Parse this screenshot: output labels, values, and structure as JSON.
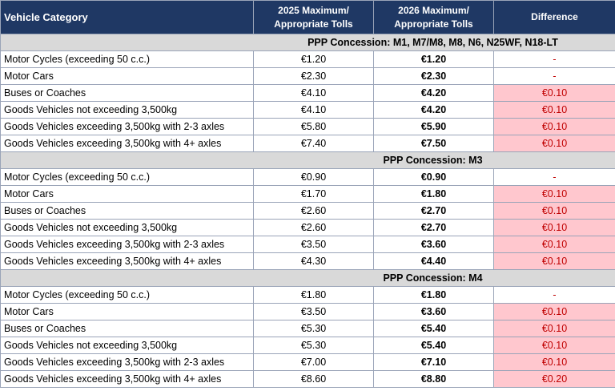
{
  "header": {
    "columns": [
      "Vehicle Category",
      "2025 Maximum/\nAppropriate Tolls",
      "2026 Maximum/\nAppropriate Tolls",
      "Difference"
    ]
  },
  "highlight_color": "#ffc7ce",
  "sections": [
    {
      "title": "PPP Concession:  M1, M7/M8, M8, N6, N25WF, N18-LT",
      "rows": [
        {
          "category": "Motor Cycles (exceeding 50 c.c.)",
          "toll_2025": "€1.20",
          "toll_2026": "€1.20",
          "difference": "-",
          "highlight": false
        },
        {
          "category": "Motor Cars",
          "toll_2025": "€2.30",
          "toll_2026": "€2.30",
          "difference": "-",
          "highlight": false
        },
        {
          "category": "Buses or Coaches",
          "toll_2025": "€4.10",
          "toll_2026": "€4.20",
          "difference": "€0.10",
          "highlight": true
        },
        {
          "category": "Goods Vehicles not exceeding 3,500kg",
          "toll_2025": "€4.10",
          "toll_2026": "€4.20",
          "difference": "€0.10",
          "highlight": true
        },
        {
          "category": "Goods Vehicles exceeding 3,500kg with 2-3 axles",
          "toll_2025": "€5.80",
          "toll_2026": "€5.90",
          "difference": "€0.10",
          "highlight": true
        },
        {
          "category": "Goods Vehicles exceeding 3,500kg with 4+ axles",
          "toll_2025": "€7.40",
          "toll_2026": "€7.50",
          "difference": "€0.10",
          "highlight": true
        }
      ]
    },
    {
      "title": "PPP Concession:  M3",
      "rows": [
        {
          "category": "Motor Cycles (exceeding 50 c.c.)",
          "toll_2025": "€0.90",
          "toll_2026": "€0.90",
          "difference": "-",
          "highlight": false
        },
        {
          "category": "Motor Cars",
          "toll_2025": "€1.70",
          "toll_2026": "€1.80",
          "difference": "€0.10",
          "highlight": true
        },
        {
          "category": "Buses or Coaches",
          "toll_2025": "€2.60",
          "toll_2026": "€2.70",
          "difference": "€0.10",
          "highlight": true
        },
        {
          "category": "Goods Vehicles not exceeding 3,500kg",
          "toll_2025": "€2.60",
          "toll_2026": "€2.70",
          "difference": "€0.10",
          "highlight": true
        },
        {
          "category": "Goods Vehicles exceeding 3,500kg with 2-3 axles",
          "toll_2025": "€3.50",
          "toll_2026": "€3.60",
          "difference": "€0.10",
          "highlight": true
        },
        {
          "category": "Goods Vehicles exceeding 3,500kg with 4+ axles",
          "toll_2025": "€4.30",
          "toll_2026": "€4.40",
          "difference": "€0.10",
          "highlight": true
        }
      ]
    },
    {
      "title": "PPP Concession:  M4",
      "rows": [
        {
          "category": "Motor Cycles (exceeding 50 c.c.)",
          "toll_2025": "€1.80",
          "toll_2026": "€1.80",
          "difference": "-",
          "highlight": false
        },
        {
          "category": "Motor Cars",
          "toll_2025": "€3.50",
          "toll_2026": "€3.60",
          "difference": "€0.10",
          "highlight": true
        },
        {
          "category": "Buses or Coaches",
          "toll_2025": "€5.30",
          "toll_2026": "€5.40",
          "difference": "€0.10",
          "highlight": true
        },
        {
          "category": "Goods Vehicles not exceeding 3,500kg",
          "toll_2025": "€5.30",
          "toll_2026": "€5.40",
          "difference": "€0.10",
          "highlight": true
        },
        {
          "category": "Goods Vehicles exceeding 3,500kg with 2-3 axles",
          "toll_2025": "€7.00",
          "toll_2026": "€7.10",
          "difference": "€0.10",
          "highlight": true
        },
        {
          "category": "Goods Vehicles exceeding 3,500kg with 4+ axles",
          "toll_2025": "€8.60",
          "toll_2026": "€8.80",
          "difference": "€0.20",
          "highlight": true
        }
      ]
    }
  ]
}
